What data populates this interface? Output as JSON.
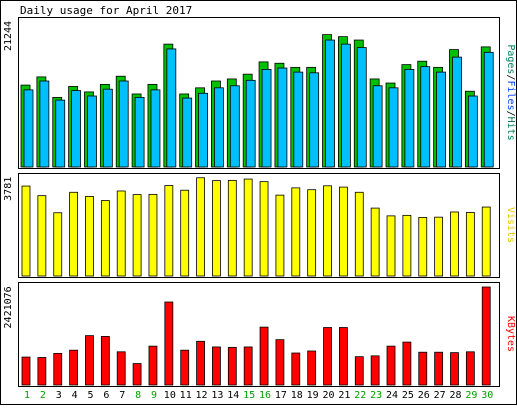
{
  "chart_data": [
    {
      "type": "bar",
      "title": "Daily usage for April 2017",
      "ylabel_max": "21244",
      "legend_parts": [
        {
          "text": "Pages",
          "color": "#00805c"
        },
        {
          "text": "/",
          "color": "#000000"
        },
        {
          "text": "Files",
          "color": "#0040ff"
        },
        {
          "text": "/",
          "color": "#000000"
        },
        {
          "text": "Hits",
          "color": "#00805c"
        }
      ],
      "ylim": [
        0,
        21244
      ],
      "categories": [
        "1",
        "2",
        "3",
        "4",
        "5",
        "6",
        "7",
        "8",
        "9",
        "10",
        "11",
        "12",
        "13",
        "14",
        "15",
        "16",
        "17",
        "18",
        "19",
        "20",
        "21",
        "22",
        "23",
        "24",
        "25",
        "26",
        "27",
        "28",
        "29",
        "30"
      ],
      "weekend_days": [
        "1",
        "2",
        "8",
        "9",
        "15",
        "16",
        "22",
        "23",
        "29",
        "30"
      ],
      "series": [
        {
          "name": "Hits",
          "color": "#00c000",
          "values": [
            12000,
            13200,
            10200,
            11800,
            11000,
            12100,
            13300,
            10700,
            12100,
            18000,
            10700,
            11600,
            12600,
            12900,
            13600,
            15400,
            15200,
            14600,
            14600,
            19400,
            19100,
            18600,
            12900,
            12300,
            15000,
            15500,
            14600,
            17200,
            11100,
            17600
          ]
        },
        {
          "name": "Files",
          "color": "#00bfff",
          "values": [
            11300,
            12600,
            9800,
            11200,
            10400,
            11400,
            12600,
            10200,
            11300,
            17300,
            10100,
            10800,
            11600,
            11900,
            12700,
            14300,
            14500,
            13900,
            13800,
            18600,
            18000,
            17500,
            11900,
            11600,
            14300,
            14700,
            13900,
            16100,
            10400,
            16800
          ]
        }
      ]
    },
    {
      "type": "bar",
      "ylabel_max": "3781",
      "legend_parts": [
        {
          "text": "Visits",
          "color": "#e6c800"
        }
      ],
      "ylim": [
        0,
        3781
      ],
      "categories": [
        "1",
        "2",
        "3",
        "4",
        "5",
        "6",
        "7",
        "8",
        "9",
        "10",
        "11",
        "12",
        "13",
        "14",
        "15",
        "16",
        "17",
        "18",
        "19",
        "20",
        "21",
        "22",
        "23",
        "24",
        "25",
        "26",
        "27",
        "28",
        "29",
        "30"
      ],
      "series": [
        {
          "name": "Visits",
          "color": "#ffff00",
          "values": [
            3470,
            3100,
            2440,
            3230,
            3070,
            2910,
            3280,
            3140,
            3150,
            3490,
            3310,
            3790,
            3680,
            3690,
            3740,
            3640,
            3120,
            3400,
            3330,
            3480,
            3430,
            3230,
            2620,
            2320,
            2340,
            2260,
            2270,
            2470,
            2450,
            2660
          ]
        }
      ]
    },
    {
      "type": "bar",
      "ylabel_max": "2421076",
      "legend_parts": [
        {
          "text": "KBytes",
          "color": "#ff0000"
        }
      ],
      "ylim": [
        0,
        2421076
      ],
      "categories": [
        "1",
        "2",
        "3",
        "4",
        "5",
        "6",
        "7",
        "8",
        "9",
        "10",
        "11",
        "12",
        "13",
        "14",
        "15",
        "16",
        "17",
        "18",
        "19",
        "20",
        "21",
        "22",
        "23",
        "24",
        "25",
        "26",
        "27",
        "28",
        "29",
        "30"
      ],
      "series": [
        {
          "name": "KBytes",
          "color": "#ff0000",
          "values": [
            690000,
            680000,
            780000,
            860000,
            1220000,
            1200000,
            820000,
            530000,
            960000,
            2050000,
            860000,
            1080000,
            940000,
            930000,
            940000,
            1430000,
            1120000,
            790000,
            840000,
            1420000,
            1420000,
            700000,
            720000,
            960000,
            1060000,
            810000,
            810000,
            800000,
            820000,
            2421076
          ]
        }
      ]
    }
  ]
}
